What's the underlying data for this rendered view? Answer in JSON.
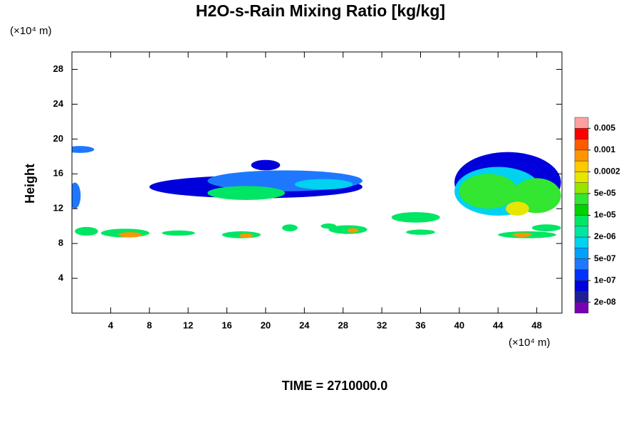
{
  "chart_data": {
    "type": "contour",
    "title": "H2O-s-Rain Mixing Ratio [kg/kg]",
    "y_unit_label": "(×10⁴ m)",
    "x_unit_label": "(×10⁴ m)",
    "ylabel": "Height",
    "footer": "TIME = 2710000.0",
    "xlim": [
      0,
      50.6
    ],
    "ylim": [
      0,
      30
    ],
    "xticks": [
      4,
      8,
      12,
      16,
      20,
      24,
      28,
      32,
      36,
      40,
      44,
      48
    ],
    "yticks": [
      4,
      8,
      12,
      16,
      20,
      24,
      28
    ],
    "colorbar_ticks": [
      {
        "value": 2e-08,
        "label": "2e-08"
      },
      {
        "value": 1e-07,
        "label": "1e-07"
      },
      {
        "value": 5e-07,
        "label": "5e-07"
      },
      {
        "value": 2e-06,
        "label": "2e-06"
      },
      {
        "value": 1e-05,
        "label": "1e-05"
      },
      {
        "value": 5e-05,
        "label": "5e-05"
      },
      0.0002,
      0.001,
      0.005
    ],
    "colorbar_colors": [
      "#7800b4",
      "#1e1e96",
      "#0000dc",
      "#0032ff",
      "#1e78ff",
      "#00a0ff",
      "#00d2f0",
      "#00e6a0",
      "#00e664",
      "#00d200",
      "#32e632",
      "#96e600",
      "#e6e600",
      "#ffc800",
      "#ff9600",
      "#ff5a00",
      "#ff0000",
      "#ffa0a0"
    ],
    "regions": [
      {
        "x": 19,
        "y": 14.5,
        "rx": 11,
        "ry": 1.3,
        "value": 3e-08
      },
      {
        "x": 22,
        "y": 15.2,
        "rx": 8,
        "ry": 1.2,
        "value": 1e-07
      },
      {
        "x": 18,
        "y": 13.8,
        "rx": 4,
        "ry": 0.8,
        "value": 2e-06
      },
      {
        "x": 26,
        "y": 14.8,
        "rx": 3,
        "ry": 0.6,
        "value": 5e-07
      },
      {
        "x": 20,
        "y": 17,
        "rx": 1.5,
        "ry": 0.6,
        "value": 2e-08
      },
      {
        "x": 0.8,
        "y": 18.8,
        "rx": 1.5,
        "ry": 0.4,
        "value": 1e-07
      },
      {
        "x": 0.3,
        "y": 13.5,
        "rx": 0.6,
        "ry": 1.5,
        "value": 1e-07
      },
      {
        "x": 45,
        "y": 15,
        "rx": 5.5,
        "ry": 3.5,
        "value": 5e-08
      },
      {
        "x": 44,
        "y": 14,
        "rx": 4.5,
        "ry": 2.8,
        "value": 5e-07
      },
      {
        "x": 43,
        "y": 14,
        "rx": 3,
        "ry": 2,
        "value": 1e-05
      },
      {
        "x": 48,
        "y": 13.5,
        "rx": 2.5,
        "ry": 2,
        "value": 1e-05
      },
      {
        "x": 46,
        "y": 12,
        "rx": 1.2,
        "ry": 0.8,
        "value": 0.0001
      },
      {
        "x": 5.5,
        "y": 9.2,
        "rx": 2.5,
        "ry": 0.5,
        "value": 5e-06
      },
      {
        "x": 6,
        "y": 9,
        "rx": 1.2,
        "ry": 0.3,
        "value": 0.0005
      },
      {
        "x": 1.5,
        "y": 9.4,
        "rx": 1.2,
        "ry": 0.5,
        "value": 2e-06
      },
      {
        "x": 11,
        "y": 9.2,
        "rx": 1.7,
        "ry": 0.3,
        "value": 2e-06
      },
      {
        "x": 17.5,
        "y": 9,
        "rx": 2,
        "ry": 0.4,
        "value": 5e-06
      },
      {
        "x": 18,
        "y": 8.9,
        "rx": 0.7,
        "ry": 0.25,
        "value": 0.0005
      },
      {
        "x": 22.5,
        "y": 9.8,
        "rx": 0.8,
        "ry": 0.4,
        "value": 2e-06
      },
      {
        "x": 26.5,
        "y": 10,
        "rx": 0.8,
        "ry": 0.3,
        "value": 2e-06
      },
      {
        "x": 28.5,
        "y": 9.6,
        "rx": 2,
        "ry": 0.5,
        "value": 5e-06
      },
      {
        "x": 29,
        "y": 9.5,
        "rx": 0.6,
        "ry": 0.25,
        "value": 0.0005
      },
      {
        "x": 35.5,
        "y": 11,
        "rx": 2.5,
        "ry": 0.6,
        "value": 5e-06
      },
      {
        "x": 36,
        "y": 9.3,
        "rx": 1.5,
        "ry": 0.3,
        "value": 2e-06
      },
      {
        "x": 47,
        "y": 9,
        "rx": 3,
        "ry": 0.4,
        "value": 5e-06
      },
      {
        "x": 46.5,
        "y": 9,
        "rx": 1,
        "ry": 0.25,
        "value": 0.0005
      },
      {
        "x": 49,
        "y": 9.8,
        "rx": 1.5,
        "ry": 0.4,
        "value": 2e-06
      }
    ]
  }
}
